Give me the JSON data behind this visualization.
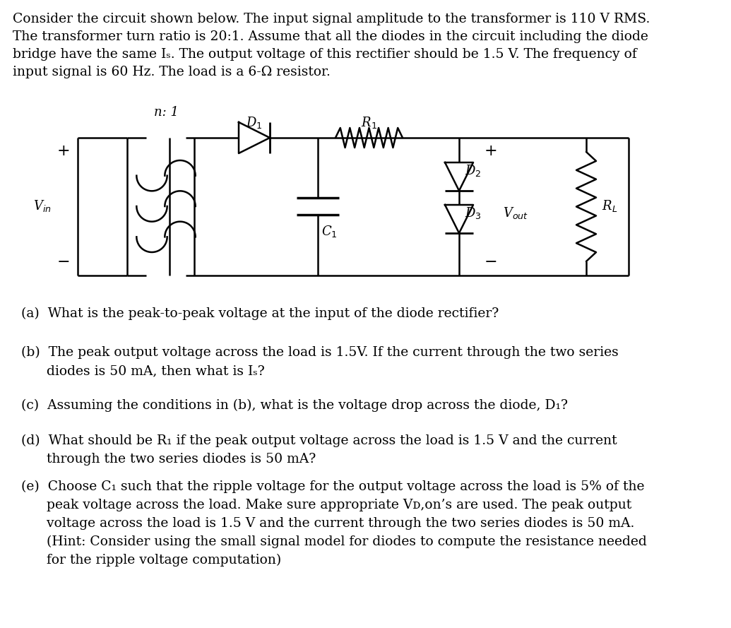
{
  "bg_color": "#ffffff",
  "intro_line1": "Consider the circuit shown below. The input signal amplitude to the transformer is 110 V RMS.",
  "intro_line2": "The transformer turn ratio is 20:1. Assume that all the diodes in the circuit including the diode",
  "intro_line3": "bridge have the same Iₛ. The output voltage of this rectifier should be 1.5 V. The frequency of",
  "intro_line4": "input signal is 60 Hz. The load is a 6-Ω resistor.",
  "q_a": "(a)  What is the peak-to-peak voltage at the input of the diode rectifier?",
  "q_b1": "(b)  The peak output voltage across the load is 1.5V. If the current through the two series",
  "q_b2": "      diodes is 50 mA, then what is Iₛ?",
  "q_c": "(c)  Assuming the conditions in (b), what is the voltage drop across the diode, D₁?",
  "q_d1": "(d)  What should be R₁ if the peak output voltage across the load is 1.5 V and the current",
  "q_d2": "      through the two series diodes is 50 mA?",
  "q_e1": "(e)  Choose C₁ such that the ripple voltage for the output voltage across the load is 5% of the",
  "q_e2": "      peak voltage across the load. Make sure appropriate Vᴅ,on’s are used. The peak output",
  "q_e3": "      voltage across the load is 1.5 V and the current through the two series diodes is 50 mA.",
  "q_e4": "      (Hint: Consider using the small signal model for diodes to compute the resistance needed",
  "q_e5": "      for the ripple voltage computation)"
}
